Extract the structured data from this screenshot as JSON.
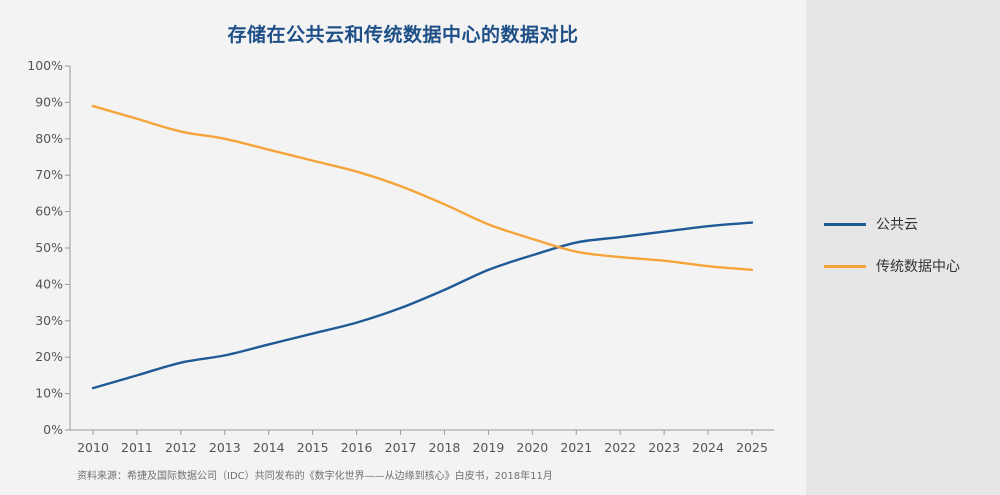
{
  "chart_data": {
    "type": "line",
    "title": "存储在公共云和传统数据中心的数据对比",
    "x": [
      "2010",
      "2011",
      "2012",
      "2013",
      "2014",
      "2015",
      "2016",
      "2017",
      "2018",
      "2019",
      "2020",
      "2021",
      "2022",
      "2023",
      "2024",
      "2025"
    ],
    "ylim": [
      0,
      100
    ],
    "y_ticks": [
      "0%",
      "10%",
      "20%",
      "30%",
      "40%",
      "50%",
      "60%",
      "70%",
      "80%",
      "90%",
      "100%"
    ],
    "grid": false,
    "legend": "right",
    "series": [
      {
        "name": "公共云",
        "color": "#1f5a96",
        "values": [
          11.5,
          15,
          18.5,
          20.5,
          23.5,
          26.5,
          29.5,
          33.5,
          38.5,
          44,
          48,
          51.5,
          53,
          54.5,
          56,
          57
        ]
      },
      {
        "name": "传统数据中心",
        "color": "#f5a43a",
        "values": [
          89,
          85.5,
          82,
          80,
          77,
          74,
          71,
          67,
          62,
          56.5,
          52.5,
          49,
          47.5,
          46.5,
          45,
          44
        ]
      }
    ],
    "source": "资料来源：希捷及国际数据公司（IDC）共同发布的《数字化世界——从边缘到核心》白皮书，2018年11月"
  }
}
